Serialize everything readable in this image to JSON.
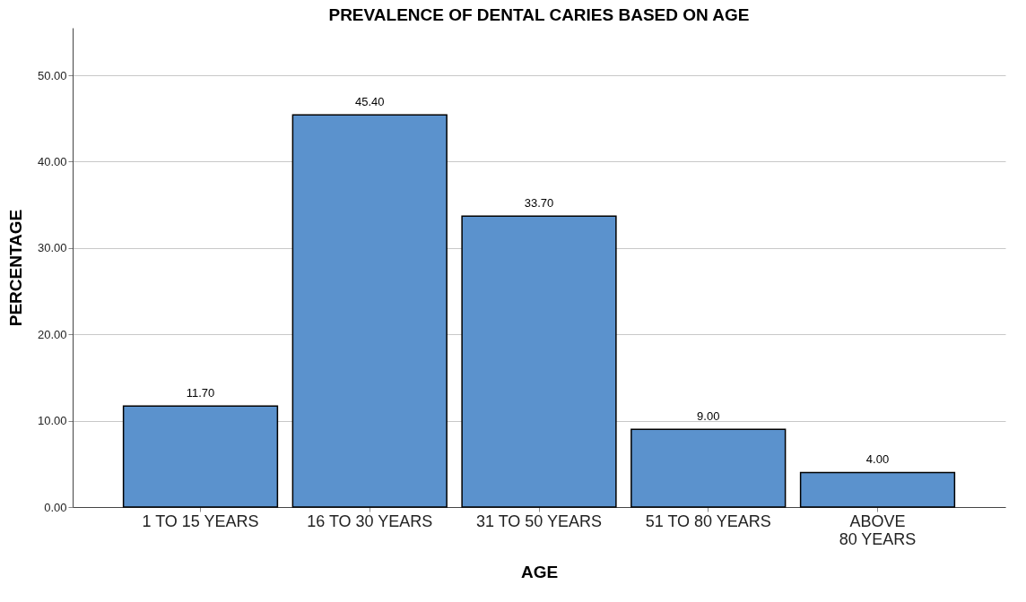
{
  "chart_data": {
    "type": "bar",
    "title": "PREVALENCE OF DENTAL CARIES BASED ON AGE",
    "xlabel": "AGE",
    "ylabel": "PERCENTAGE",
    "categories": [
      "1 TO 15 YEARS",
      "16 TO 30 YEARS",
      "31 TO 50 YEARS",
      "51 TO 80 YEARS",
      "ABOVE 80 YEARS"
    ],
    "values": [
      11.7,
      45.4,
      33.7,
      9.0,
      4.0
    ],
    "value_labels": [
      "11.70",
      "45.40",
      "33.70",
      "9.00",
      "4.00"
    ],
    "color": "#5b92cd",
    "ylim": [
      0,
      55.5
    ],
    "yticks": [
      {
        "value": 0,
        "label": "0.00"
      },
      {
        "value": 10,
        "label": "10.00"
      },
      {
        "value": 20,
        "label": "20.00"
      },
      {
        "value": 30,
        "label": "30.00"
      },
      {
        "value": 40,
        "label": "40.00"
      },
      {
        "value": 50,
        "label": "50.00"
      }
    ],
    "grid": "y"
  }
}
